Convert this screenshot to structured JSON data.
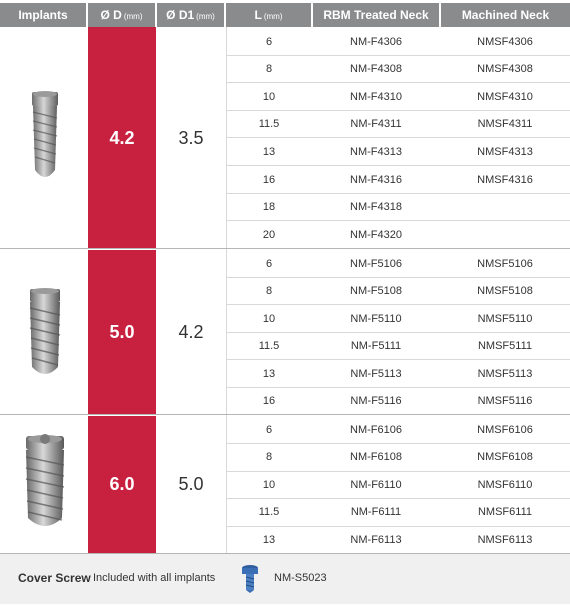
{
  "header": {
    "implants": "Implants",
    "d_label": "Ø D",
    "d_unit": "(mm)",
    "d1_label": "Ø D1",
    "d1_unit": "(mm)",
    "l_label": "L",
    "l_unit": "(mm)",
    "rbm": "RBM Treated Neck",
    "machined": "Machined Neck"
  },
  "groups": [
    {
      "d": "4.2",
      "d1": "3.5",
      "rows": [
        {
          "l": "6",
          "rbm": "NM-F4306",
          "mach": "NMSF4306"
        },
        {
          "l": "8",
          "rbm": "NM-F4308",
          "mach": "NMSF4308"
        },
        {
          "l": "10",
          "rbm": "NM-F4310",
          "mach": "NMSF4310"
        },
        {
          "l": "11.5",
          "rbm": "NM-F4311",
          "mach": "NMSF4311"
        },
        {
          "l": "13",
          "rbm": "NM-F4313",
          "mach": "NMSF4313"
        },
        {
          "l": "16",
          "rbm": "NM-F4316",
          "mach": "NMSF4316"
        },
        {
          "l": "18",
          "rbm": "NM-F4318",
          "mach": ""
        },
        {
          "l": "20",
          "rbm": "NM-F4320",
          "mach": ""
        }
      ]
    },
    {
      "d": "5.0",
      "d1": "4.2",
      "rows": [
        {
          "l": "6",
          "rbm": "NM-F5106",
          "mach": "NMSF5106"
        },
        {
          "l": "8",
          "rbm": "NM-F5108",
          "mach": "NMSF5108"
        },
        {
          "l": "10",
          "rbm": "NM-F5110",
          "mach": "NMSF5110"
        },
        {
          "l": "11.5",
          "rbm": "NM-F5111",
          "mach": "NMSF5111"
        },
        {
          "l": "13",
          "rbm": "NM-F5113",
          "mach": "NMSF5113"
        },
        {
          "l": "16",
          "rbm": "NM-F5116",
          "mach": "NMSF5116"
        }
      ]
    },
    {
      "d": "6.0",
      "d1": "5.0",
      "rows": [
        {
          "l": "6",
          "rbm": "NM-F6106",
          "mach": "NMSF6106"
        },
        {
          "l": "8",
          "rbm": "NM-F6108",
          "mach": "NMSF6108"
        },
        {
          "l": "10",
          "rbm": "NM-F6110",
          "mach": "NMSF6110"
        },
        {
          "l": "11.5",
          "rbm": "NM-F6111",
          "mach": "NMSF6111"
        },
        {
          "l": "13",
          "rbm": "NM-F6113",
          "mach": "NMSF6113"
        }
      ]
    }
  ],
  "footer": {
    "title": "Cover Screw",
    "note": "Included with all implants",
    "code": "NM-S5023"
  },
  "colors": {
    "header_bg": "#8a8b8d",
    "accent": "#c8203f",
    "footer_bg": "#f0f0f0",
    "screw": "#3a6fb5"
  }
}
